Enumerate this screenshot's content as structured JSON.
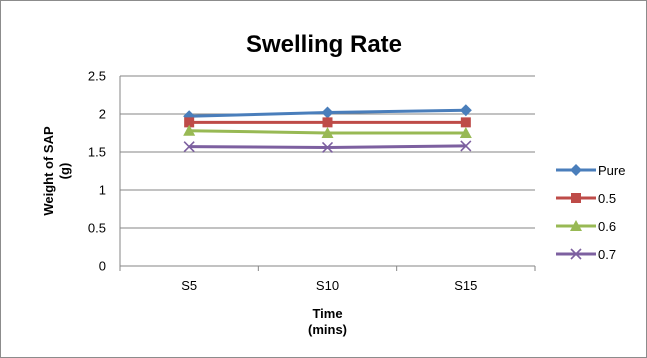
{
  "chart_data": {
    "type": "line",
    "title": "Swelling Rate",
    "xlabel": "Time\n(mins)",
    "ylabel": "Weight of SAP\n(g)",
    "categories": [
      "S5",
      "S10",
      "S15"
    ],
    "ylim": [
      0,
      2.5
    ],
    "yticks": [
      "0",
      "0.5",
      "1",
      "1.5",
      "2",
      "2.5"
    ],
    "grid": true,
    "legend_position": "right",
    "series": [
      {
        "name": "Pure",
        "values": [
          1.97,
          2.02,
          2.05
        ],
        "color": "#4a7ebb",
        "marker": "diamond"
      },
      {
        "name": "0.5",
        "values": [
          1.89,
          1.89,
          1.89
        ],
        "color": "#be4b48",
        "marker": "square"
      },
      {
        "name": "0.6",
        "values": [
          1.78,
          1.75,
          1.75
        ],
        "color": "#98b954",
        "marker": "triangle"
      },
      {
        "name": "0.7",
        "values": [
          1.57,
          1.56,
          1.58
        ],
        "color": "#7d60a0",
        "marker": "x"
      }
    ]
  }
}
